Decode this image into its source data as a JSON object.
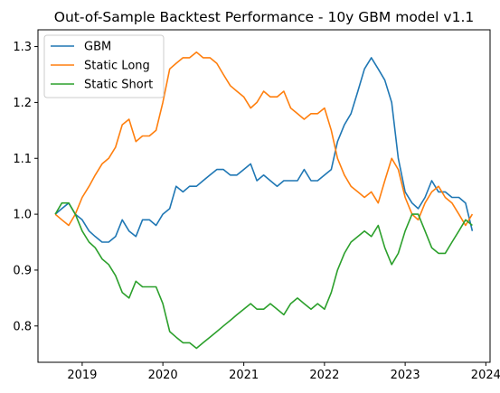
{
  "chart_data": {
    "type": "line",
    "title": "Out-of-Sample Backtest Performance - 10y GBM model v1.1",
    "xlabel": "",
    "ylabel": "",
    "xlim": [
      "2018-06-15",
      "2024-01-20"
    ],
    "ylim": [
      0.735,
      1.33
    ],
    "x_ticks": [
      "2019",
      "2020",
      "2021",
      "2022",
      "2023",
      "2024"
    ],
    "y_ticks": [
      "0.8",
      "0.9",
      "1.0",
      "1.1",
      "1.2",
      "1.3"
    ],
    "grid": false,
    "legend_position": "top-left",
    "x": [
      "2018-09-01",
      "2018-10-01",
      "2018-11-01",
      "2018-12-01",
      "2019-01-01",
      "2019-02-01",
      "2019-03-01",
      "2019-04-01",
      "2019-05-01",
      "2019-06-01",
      "2019-07-01",
      "2019-08-01",
      "2019-09-01",
      "2019-10-01",
      "2019-11-01",
      "2019-12-01",
      "2020-01-01",
      "2020-02-01",
      "2020-03-01",
      "2020-04-01",
      "2020-05-01",
      "2020-06-01",
      "2020-07-01",
      "2020-08-01",
      "2020-09-01",
      "2020-10-01",
      "2020-11-01",
      "2020-12-01",
      "2021-01-01",
      "2021-02-01",
      "2021-03-01",
      "2021-04-01",
      "2021-05-01",
      "2021-06-01",
      "2021-07-01",
      "2021-08-01",
      "2021-09-01",
      "2021-10-01",
      "2021-11-01",
      "2021-12-01",
      "2022-01-01",
      "2022-02-01",
      "2022-03-01",
      "2022-04-01",
      "2022-05-01",
      "2022-06-01",
      "2022-07-01",
      "2022-08-01",
      "2022-09-01",
      "2022-10-01",
      "2022-11-01",
      "2022-12-01",
      "2023-01-01",
      "2023-02-01",
      "2023-03-01",
      "2023-04-01",
      "2023-05-01",
      "2023-06-01",
      "2023-07-01",
      "2023-08-01",
      "2023-09-01",
      "2023-10-01",
      "2023-11-01"
    ],
    "series": [
      {
        "name": "GBM",
        "color": "#1f77b4",
        "values": [
          1.0,
          1.01,
          1.02,
          1.0,
          0.99,
          0.97,
          0.96,
          0.95,
          0.95,
          0.96,
          0.99,
          0.97,
          0.96,
          0.99,
          0.99,
          0.98,
          1.0,
          1.01,
          1.05,
          1.04,
          1.05,
          1.05,
          1.06,
          1.07,
          1.08,
          1.08,
          1.07,
          1.07,
          1.08,
          1.09,
          1.06,
          1.07,
          1.06,
          1.05,
          1.06,
          1.06,
          1.06,
          1.08,
          1.06,
          1.06,
          1.07,
          1.08,
          1.13,
          1.16,
          1.18,
          1.22,
          1.26,
          1.28,
          1.26,
          1.24,
          1.2,
          1.1,
          1.04,
          1.02,
          1.01,
          1.03,
          1.06,
          1.04,
          1.04,
          1.03,
          1.03,
          1.02,
          0.97
        ]
      },
      {
        "name": "Static Long",
        "color": "#ff7f0e",
        "values": [
          1.0,
          0.99,
          0.98,
          1.0,
          1.03,
          1.05,
          1.07,
          1.09,
          1.1,
          1.12,
          1.16,
          1.17,
          1.13,
          1.14,
          1.14,
          1.15,
          1.2,
          1.26,
          1.27,
          1.28,
          1.28,
          1.29,
          1.28,
          1.28,
          1.27,
          1.25,
          1.23,
          1.22,
          1.21,
          1.19,
          1.2,
          1.22,
          1.21,
          1.21,
          1.22,
          1.19,
          1.18,
          1.17,
          1.18,
          1.18,
          1.19,
          1.15,
          1.1,
          1.07,
          1.05,
          1.04,
          1.03,
          1.04,
          1.02,
          1.06,
          1.1,
          1.08,
          1.03,
          1.0,
          0.99,
          1.02,
          1.04,
          1.05,
          1.03,
          1.02,
          1.0,
          0.98,
          1.0
        ]
      },
      {
        "name": "Static Short",
        "color": "#2ca02c",
        "values": [
          1.0,
          1.02,
          1.02,
          1.0,
          0.97,
          0.95,
          0.94,
          0.92,
          0.91,
          0.89,
          0.86,
          0.85,
          0.88,
          0.87,
          0.87,
          0.87,
          0.84,
          0.79,
          0.78,
          0.77,
          0.77,
          0.76,
          0.77,
          0.78,
          0.79,
          0.8,
          0.81,
          0.82,
          0.83,
          0.84,
          0.83,
          0.83,
          0.84,
          0.83,
          0.82,
          0.84,
          0.85,
          0.84,
          0.83,
          0.84,
          0.83,
          0.86,
          0.9,
          0.93,
          0.95,
          0.96,
          0.97,
          0.96,
          0.98,
          0.94,
          0.91,
          0.93,
          0.97,
          1.0,
          1.0,
          0.97,
          0.94,
          0.93,
          0.93,
          0.95,
          0.97,
          0.99,
          0.98
        ]
      }
    ]
  }
}
